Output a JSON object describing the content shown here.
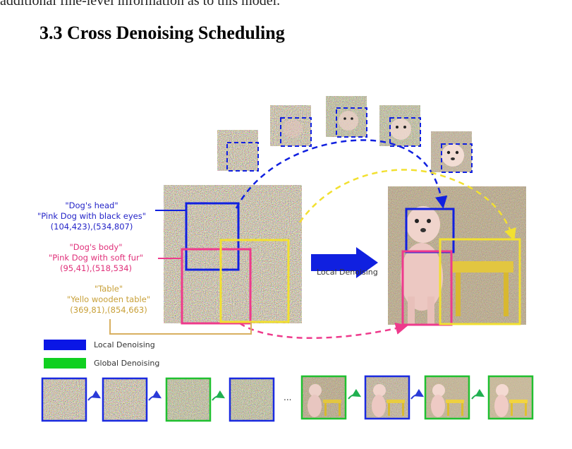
{
  "page": {
    "cut_line": "additional fine-level information as to this model.",
    "heading": "3.3 Cross Denoising Scheduling"
  },
  "figure": {
    "prompts": [
      {
        "title": "\"Dog's head\"",
        "text": "\"Pink Dog with black eyes\"",
        "coords": "(104,423),(534,807)",
        "color": "#2424c8"
      },
      {
        "title": "\"Dog's body\"",
        "text": "\"Pink Dog with soft fur\"",
        "coords": "(95,41),(518,534)",
        "color": "#e0307a"
      },
      {
        "title": "\"Table\"",
        "text": "\"Yello wooden table\"",
        "coords": "(369,81),(854,663)",
        "color": "#c8a038"
      }
    ],
    "arrow_label": "Local Denoising",
    "legend": [
      {
        "label": "Local Denoising",
        "color": "#0a16e6"
      },
      {
        "label": "Global Denoising",
        "color": "#10d020"
      }
    ],
    "ellipsis": "...",
    "colors": {
      "blue": "#1020e0",
      "pink": "#ee3a8c",
      "yellow": "#f2e030",
      "green": "#18c820",
      "gold": "#d8b060"
    }
  }
}
